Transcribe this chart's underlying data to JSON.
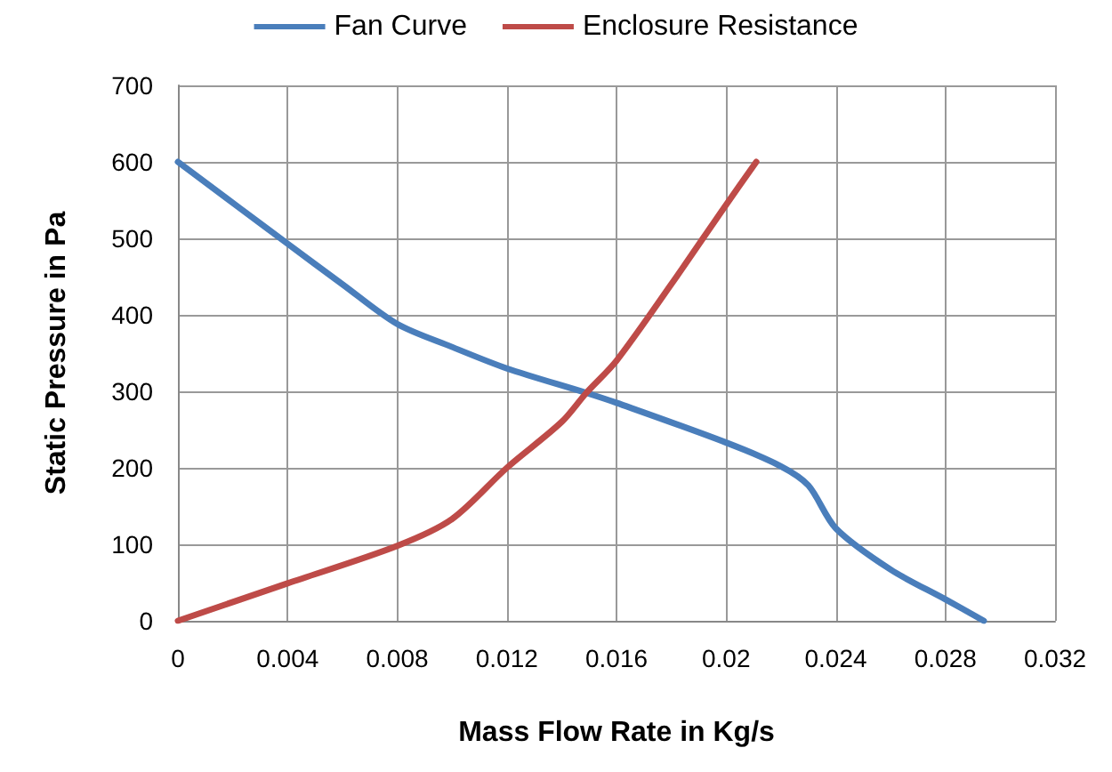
{
  "chart_data": {
    "type": "line",
    "xlabel": "Mass Flow Rate in Kg/s",
    "ylabel": "Static Pressure in Pa",
    "series": [
      {
        "name": "Fan Curve",
        "color": "#4a7ebb",
        "x": [
          0,
          0.004,
          0.006,
          0.008,
          0.01,
          0.012,
          0.0149,
          0.016,
          0.02,
          0.022,
          0.023,
          0.024,
          0.026,
          0.028,
          0.0294
        ],
        "values": [
          600,
          493,
          440,
          388,
          358,
          330,
          298,
          285,
          233,
          202,
          177,
          121,
          67,
          28,
          0
        ]
      },
      {
        "name": "Enclosure Resistance",
        "color": "#be4b48",
        "x": [
          0,
          0.004,
          0.008,
          0.01,
          0.012,
          0.014,
          0.0149,
          0.016,
          0.018,
          0.02,
          0.0211
        ],
        "values": [
          0,
          49,
          98,
          133,
          200,
          260,
          298,
          340,
          440,
          544,
          600
        ]
      }
    ],
    "xlim": [
      0,
      0.032
    ],
    "xticks": [
      0,
      0.004,
      0.008,
      0.012,
      0.016,
      0.02,
      0.024,
      0.028,
      0.032
    ],
    "ylim": [
      0,
      700
    ],
    "yticks": [
      0,
      100,
      200,
      300,
      400,
      500,
      600,
      700
    ],
    "grid": true,
    "legend": "top",
    "marker": "none",
    "line_style": "solid"
  }
}
